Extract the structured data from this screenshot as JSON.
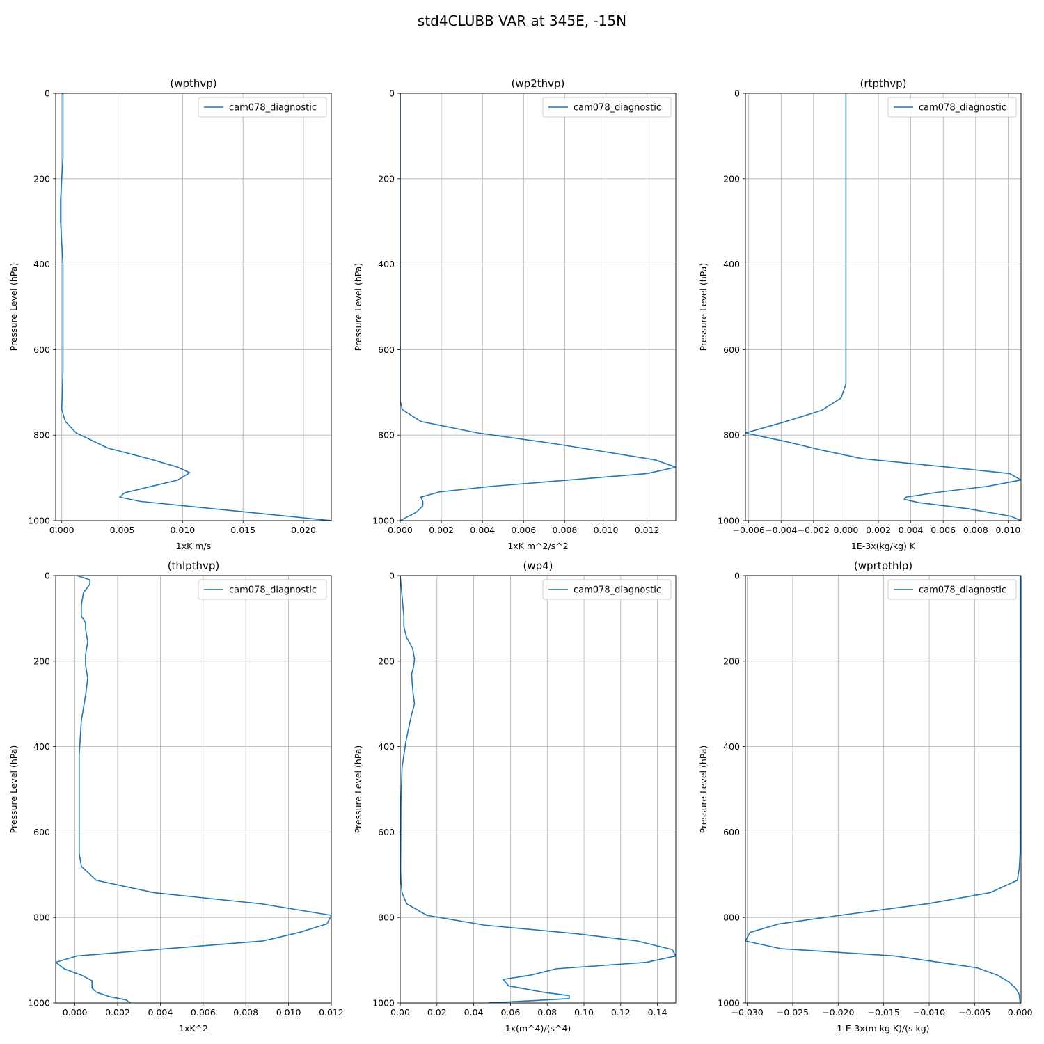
{
  "figure": {
    "title": "std4CLUBB VAR at 345E, -15N"
  },
  "chart_data": [
    {
      "type": "line",
      "title": "(wpthvp)",
      "xlabel": "1xK m/s",
      "ylabel": "Pressure Level (hPa)",
      "xlim": [
        -0.0005,
        0.0223
      ],
      "ylim": [
        1000,
        0
      ],
      "xticks": [
        "0.000",
        "0.005",
        "0.010",
        "0.015",
        "0.020"
      ],
      "xtick_values": [
        0,
        0.005,
        0.01,
        0.015,
        0.02
      ],
      "yticks": [
        "0",
        "200",
        "400",
        "600",
        "800",
        "1000"
      ],
      "ytick_values": [
        0,
        200,
        400,
        600,
        800,
        1000
      ],
      "grid": true,
      "legend": "top-right",
      "series": [
        {
          "name": "cam078_diagnostic",
          "color": "#1f77b4",
          "x": [
            0.0001,
            0.0001,
            0.0001,
            0.0001,
            0.0,
            -0.0001,
            -0.0001,
            0.0,
            0.0001,
            0.0001,
            0.0001,
            0.0001,
            0.0001,
            0.0001,
            0.0,
            0.0003,
            0.0012,
            0.0038,
            0.0072,
            0.0096,
            0.0106,
            0.0096,
            0.0052,
            0.0048,
            0.0065,
            0.0223
          ],
          "y": [
            0,
            50,
            100,
            150,
            200,
            250,
            300,
            350,
            400,
            450,
            500,
            550,
            600,
            650,
            740,
            768,
            795,
            830,
            855,
            875,
            888,
            905,
            935,
            945,
            955,
            1000
          ]
        }
      ]
    },
    {
      "type": "line",
      "title": "(wp2thvp)",
      "xlabel": "1xK m^2/s^2",
      "ylabel": "Pressure Level (hPa)",
      "xlim": [
        0,
        0.0134
      ],
      "ylim": [
        1000,
        0
      ],
      "xticks": [
        "0.000",
        "0.002",
        "0.004",
        "0.006",
        "0.008",
        "0.010",
        "0.012"
      ],
      "xtick_values": [
        0,
        0.002,
        0.004,
        0.006,
        0.008,
        0.01,
        0.012
      ],
      "yticks": [
        "0",
        "200",
        "400",
        "600",
        "800",
        "1000"
      ],
      "ytick_values": [
        0,
        200,
        400,
        600,
        800,
        1000
      ],
      "grid": true,
      "legend": "top-right",
      "series": [
        {
          "name": "cam078_diagnostic",
          "color": "#1f77b4",
          "x": [
            0.0,
            0.0,
            0.0001,
            0.001,
            0.0038,
            0.0075,
            0.0101,
            0.0124,
            0.0134,
            0.012,
            0.0082,
            0.0044,
            0.0019,
            0.001,
            0.0011,
            0.0011,
            0.0008,
            0.0
          ],
          "y": [
            0,
            720,
            740,
            768,
            795,
            820,
            840,
            858,
            875,
            890,
            905,
            920,
            933,
            945,
            955,
            965,
            980,
            1000
          ]
        }
      ]
    },
    {
      "type": "line",
      "title": "(rtpthvp)",
      "xlabel": "1E-3x(kg/kg) K",
      "ylabel": "Pressure Level (hPa)",
      "xlim": [
        -0.0062,
        0.0108
      ],
      "ylim": [
        1000,
        0
      ],
      "xticks": [
        "−0.006",
        "−0.004",
        "−0.002",
        "0.000",
        "0.002",
        "0.004",
        "0.006",
        "0.008",
        "0.010"
      ],
      "xtick_values": [
        -0.006,
        -0.004,
        -0.002,
        0,
        0.002,
        0.004,
        0.006,
        0.008,
        0.01
      ],
      "yticks": [
        "0",
        "200",
        "400",
        "600",
        "800",
        "1000"
      ],
      "ytick_values": [
        0,
        200,
        400,
        600,
        800,
        1000
      ],
      "grid": true,
      "legend": "top-right",
      "series": [
        {
          "name": "cam078_diagnostic",
          "color": "#1f77b4",
          "x": [
            0.0,
            0.0,
            0.0,
            0.0,
            0.0,
            -0.0003,
            -0.0015,
            -0.0037,
            -0.0062,
            -0.0037,
            -0.0015,
            0.001,
            0.0058,
            0.0101,
            0.0108,
            0.0087,
            0.0058,
            0.0037,
            0.0036,
            0.0045,
            0.0075,
            0.0102,
            0.0108
          ],
          "y": [
            0,
            200,
            400,
            600,
            680,
            713,
            742,
            768,
            795,
            815,
            835,
            855,
            873,
            890,
            905,
            920,
            933,
            945,
            950,
            958,
            972,
            990,
            1000
          ]
        }
      ]
    },
    {
      "type": "line",
      "title": "(thlpthvp)",
      "xlabel": "1xK^2",
      "ylabel": "Pressure Level (hPa)",
      "xlim": [
        -0.0009,
        0.012
      ],
      "ylim": [
        1000,
        0
      ],
      "xticks": [
        "0.000",
        "0.002",
        "0.004",
        "0.006",
        "0.008",
        "0.010",
        "0.012"
      ],
      "xtick_values": [
        0,
        0.002,
        0.004,
        0.006,
        0.008,
        0.01,
        0.012
      ],
      "yticks": [
        "0",
        "200",
        "400",
        "600",
        "800",
        "1000"
      ],
      "ytick_values": [
        0,
        200,
        400,
        600,
        800,
        1000
      ],
      "grid": true,
      "legend": "top-right",
      "series": [
        {
          "name": "cam078_diagnostic",
          "color": "#1f77b4",
          "x": [
            0.0001,
            0.0007,
            0.0007,
            0.0004,
            0.0003,
            0.0003,
            0.0005,
            0.0005,
            0.0006,
            0.0005,
            0.0005,
            0.0006,
            0.0005,
            0.0003,
            0.0002,
            0.0002,
            0.0002,
            0.0003,
            0.001,
            0.0037,
            0.0087,
            0.012,
            0.0118,
            0.0105,
            0.0088,
            0.0001,
            -0.0009,
            -0.0005,
            0.0003,
            0.0008,
            0.0008,
            0.001,
            0.0016,
            0.0024,
            0.0026
          ],
          "y": [
            0,
            10,
            20,
            40,
            70,
            95,
            110,
            125,
            155,
            185,
            210,
            240,
            280,
            340,
            420,
            500,
            650,
            680,
            713,
            742,
            768,
            795,
            815,
            835,
            855,
            890,
            905,
            920,
            935,
            948,
            965,
            975,
            985,
            993,
            1000
          ]
        }
      ]
    },
    {
      "type": "line",
      "title": "(wp4)",
      "xlabel": "1x(m^4)/(s^4)",
      "ylabel": "Pressure Level (hPa)",
      "xlim": [
        0,
        0.15
      ],
      "ylim": [
        1000,
        0
      ],
      "xticks": [
        "0.00",
        "0.02",
        "0.04",
        "0.06",
        "0.08",
        "0.10",
        "0.12",
        "0.14"
      ],
      "xtick_values": [
        0,
        0.02,
        0.04,
        0.06,
        0.08,
        0.1,
        0.12,
        0.14
      ],
      "yticks": [
        "0",
        "200",
        "400",
        "600",
        "800",
        "1000"
      ],
      "ytick_values": [
        0,
        200,
        400,
        600,
        800,
        1000
      ],
      "grid": true,
      "legend": "top-right",
      "series": [
        {
          "name": "cam078_diagnostic",
          "color": "#1f77b4",
          "x": [
            0.0,
            0.002,
            0.002,
            0.0035,
            0.0067,
            0.0078,
            0.0072,
            0.0062,
            0.0065,
            0.007,
            0.0078,
            0.0065,
            0.0052,
            0.003,
            0.001,
            0.0004,
            0.0003,
            0.0002,
            0.0004,
            0.001,
            0.0035,
            0.0145,
            0.046,
            0.096,
            0.129,
            0.148,
            0.15,
            0.134,
            0.085,
            0.071,
            0.056,
            0.059,
            0.078,
            0.092,
            0.092,
            0.075,
            0.048
          ],
          "y": [
            0,
            95,
            120,
            145,
            170,
            195,
            215,
            230,
            250,
            275,
            300,
            320,
            345,
            390,
            450,
            530,
            620,
            690,
            715,
            742,
            768,
            795,
            818,
            838,
            855,
            875,
            890,
            905,
            920,
            935,
            945,
            960,
            975,
            983,
            990,
            994,
            1000
          ]
        }
      ]
    },
    {
      "type": "line",
      "title": "(wprtpthlp)",
      "xlabel": "1-E-3x(m kg K)/(s kg)",
      "ylabel": "Pressure Level (hPa)",
      "xlim": [
        -0.0302,
        0.0001
      ],
      "ylim": [
        1000,
        0
      ],
      "xticks": [
        "−0.030",
        "−0.025",
        "−0.020",
        "−0.015",
        "−0.010",
        "−0.005",
        "0.000"
      ],
      "xtick_values": [
        -0.03,
        -0.025,
        -0.02,
        -0.015,
        -0.01,
        -0.005,
        0
      ],
      "yticks": [
        "0",
        "200",
        "400",
        "600",
        "800",
        "1000"
      ],
      "ytick_values": [
        0,
        200,
        400,
        600,
        800,
        1000
      ],
      "grid": true,
      "legend": "top-right",
      "series": [
        {
          "name": "cam078_diagnostic",
          "color": "#1f77b4",
          "x": [
            0.0,
            0.0,
            0.0,
            0.0,
            0.0,
            -0.0001,
            -0.0003,
            -0.0033,
            -0.0102,
            -0.0198,
            -0.0265,
            -0.0297,
            -0.0302,
            -0.0263,
            -0.0138,
            -0.0047,
            -0.0025,
            -0.0013,
            -0.0005,
            -0.0001,
            0.0
          ],
          "y": [
            0,
            200,
            400,
            600,
            650,
            685,
            713,
            742,
            768,
            795,
            815,
            835,
            855,
            873,
            890,
            918,
            935,
            950,
            965,
            980,
            1000
          ]
        }
      ]
    }
  ]
}
